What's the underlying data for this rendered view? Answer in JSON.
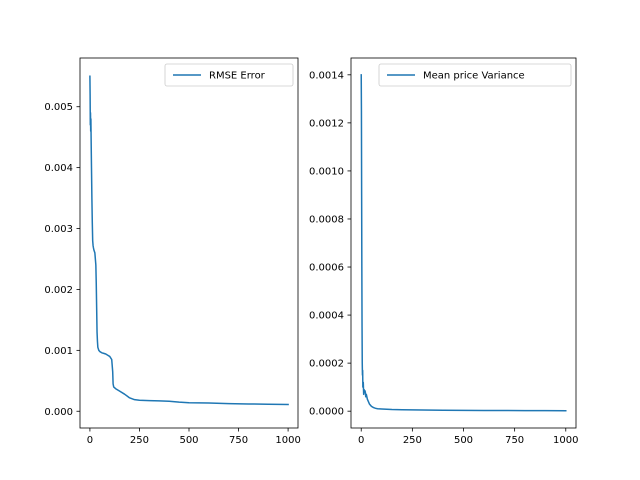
{
  "chart_data": [
    {
      "type": "line",
      "title": "",
      "xlabel": "",
      "ylabel": "",
      "xlim": [
        -50,
        1050
      ],
      "ylim": [
        -0.000275,
        0.0058
      ],
      "xticks": [
        0,
        250,
        500,
        750,
        1000
      ],
      "xtick_labels": [
        "0",
        "250",
        "500",
        "750",
        "1000"
      ],
      "yticks": [
        0,
        0.001,
        0.002,
        0.003,
        0.004,
        0.005
      ],
      "ytick_labels": [
        "0.000",
        "0.001",
        "0.002",
        "0.003",
        "0.004",
        "0.005"
      ],
      "legend": "top-right",
      "grid": false,
      "color": "#1f77b4",
      "series": [
        {
          "name": "RMSE Error",
          "x": [
            0,
            1,
            2,
            3,
            4,
            5,
            6,
            8,
            10,
            12,
            14,
            16,
            18,
            20,
            25,
            30,
            32,
            34,
            36,
            38,
            40,
            45,
            50,
            60,
            70,
            80,
            90,
            100,
            110,
            115,
            117,
            120,
            130,
            150,
            175,
            200,
            225,
            250,
            300,
            350,
            400,
            450,
            500,
            600,
            700,
            800,
            900,
            1000
          ],
          "y": [
            0.0055,
            0.0052,
            0.0047,
            0.0049,
            0.0046,
            0.0048,
            0.0045,
            0.004,
            0.0035,
            0.0031,
            0.0028,
            0.00272,
            0.00268,
            0.00265,
            0.0026,
            0.0024,
            0.0021,
            0.0017,
            0.0013,
            0.00115,
            0.00105,
            0.001,
            0.00098,
            0.00096,
            0.00095,
            0.00094,
            0.00092,
            0.0009,
            0.00085,
            0.00065,
            0.00045,
            0.0004,
            0.00037,
            0.00033,
            0.00028,
            0.00022,
            0.00019,
            0.00018,
            0.000175,
            0.00017,
            0.000165,
            0.00015,
            0.00014,
            0.000135,
            0.000125,
            0.00012,
            0.000115,
            0.00011
          ]
        }
      ]
    },
    {
      "type": "line",
      "title": "",
      "xlabel": "",
      "ylabel": "",
      "xlim": [
        -50,
        1050
      ],
      "ylim": [
        -7e-05,
        0.00147
      ],
      "xticks": [
        0,
        250,
        500,
        750,
        1000
      ],
      "xtick_labels": [
        "0",
        "250",
        "500",
        "750",
        "1000"
      ],
      "yticks": [
        0,
        0.0002,
        0.0004,
        0.0006,
        0.0008,
        0.001,
        0.0012,
        0.0014
      ],
      "ytick_labels": [
        "0.0000",
        "0.0002",
        "0.0004",
        "0.0006",
        "0.0008",
        "0.0010",
        "0.0012",
        "0.0014"
      ],
      "legend": "top-right",
      "grid": false,
      "color": "#1f77b4",
      "series": [
        {
          "name": "Mean price Variance",
          "x": [
            0,
            1,
            2,
            3,
            4,
            5,
            6,
            7,
            8,
            10,
            12,
            14,
            16,
            18,
            20,
            22,
            25,
            30,
            35,
            40,
            50,
            60,
            70,
            80,
            100,
            150,
            200,
            300,
            400,
            500,
            600,
            700,
            800,
            900,
            1000
          ],
          "y": [
            0.0014,
            0.00125,
            0.0009,
            0.0006,
            0.00035,
            0.0002,
            0.00015,
            0.00017,
            0.0001,
            0.00012,
            7e-05,
            9e-05,
            8e-05,
            8.5e-05,
            8e-05,
            6e-05,
            7e-05,
            5e-05,
            4e-05,
            3e-05,
            2e-05,
            1.5e-05,
            1.2e-05,
            1e-05,
            9e-06,
            7e-06,
            6e-06,
            5e-06,
            4e-06,
            3.5e-06,
            3e-06,
            3e-06,
            2.5e-06,
            2.5e-06,
            2e-06
          ]
        }
      ]
    }
  ]
}
